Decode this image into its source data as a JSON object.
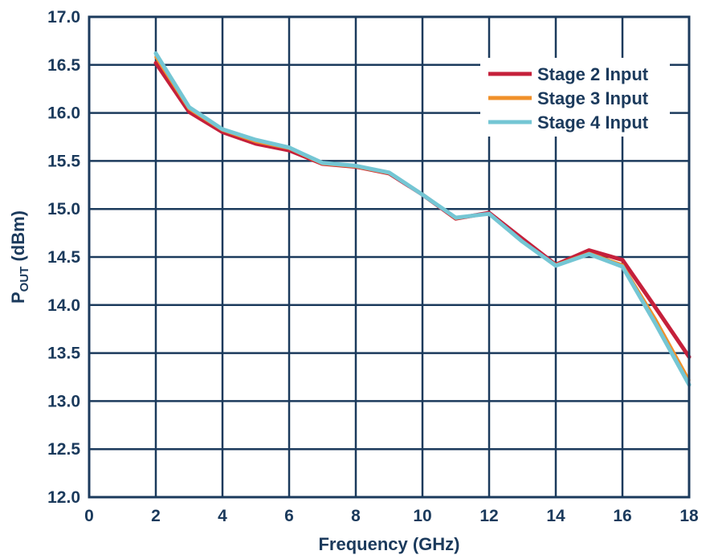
{
  "chart_data": {
    "type": "line",
    "title": "",
    "xlabel": "Frequency (GHz)",
    "ylabel_main": "P",
    "ylabel_sub": "OUT",
    "ylabel_unit": " (dBm)",
    "xlim": [
      0,
      18
    ],
    "ylim": [
      12.0,
      17.0
    ],
    "grid": true,
    "legend_position": "top-right",
    "x_ticks": [
      0,
      2,
      4,
      6,
      8,
      10,
      12,
      14,
      16,
      18
    ],
    "x_tick_labels": [
      "0",
      "2",
      "4",
      "6",
      "8",
      "10",
      "12",
      "14",
      "16",
      "18"
    ],
    "y_ticks": [
      12.0,
      12.5,
      13.0,
      13.5,
      14.0,
      14.5,
      15.0,
      15.5,
      16.0,
      16.5,
      17.0
    ],
    "y_tick_labels": [
      "12.0",
      "12.5",
      "13.0",
      "13.5",
      "14.0",
      "14.5",
      "15.0",
      "15.5",
      "16.0",
      "16.5",
      "17.0"
    ],
    "x": [
      2,
      3,
      4,
      5,
      6,
      7,
      8,
      9,
      10,
      11,
      12,
      13,
      14,
      15,
      16,
      17,
      18
    ],
    "series": [
      {
        "name": "Stage 2 Input",
        "color": "#c5203b",
        "values": [
          16.52,
          16.01,
          15.8,
          15.68,
          15.61,
          15.47,
          15.44,
          15.37,
          15.15,
          14.9,
          14.96,
          14.69,
          14.42,
          14.57,
          14.47,
          13.97,
          13.46
        ]
      },
      {
        "name": "Stage 3 Input",
        "color": "#f0902a",
        "values": [
          16.58,
          16.04,
          15.82,
          15.7,
          15.63,
          15.47,
          15.44,
          15.37,
          15.15,
          14.9,
          14.95,
          14.66,
          14.42,
          14.54,
          14.42,
          13.85,
          13.22
        ]
      },
      {
        "name": "Stage 4 Input",
        "color": "#74c6d4",
        "values": [
          16.62,
          16.06,
          15.83,
          15.72,
          15.64,
          15.48,
          15.45,
          15.38,
          15.15,
          14.91,
          14.95,
          14.66,
          14.41,
          14.53,
          14.4,
          13.8,
          13.17
        ]
      }
    ]
  }
}
